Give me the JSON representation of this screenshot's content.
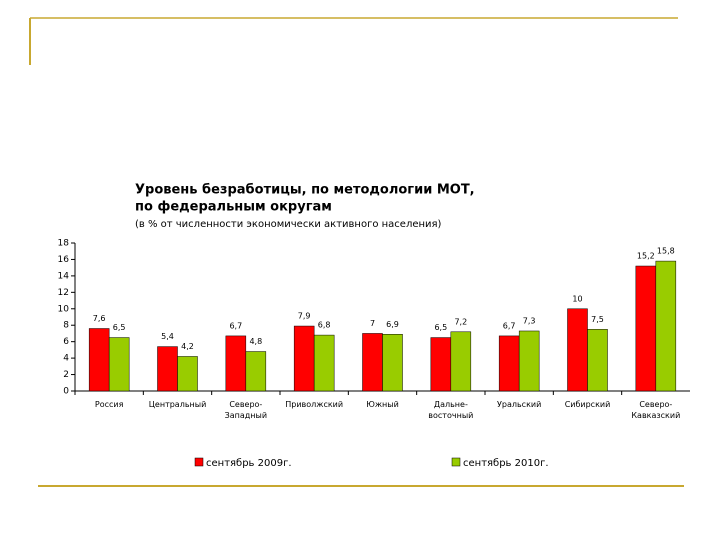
{
  "chart_data": {
    "type": "bar",
    "title": [
      "Уровень безработицы, по методологии МОТ,",
      "по федеральным округам"
    ],
    "subtitle": "(в % от численности экономически активного населения)",
    "categories": [
      "Россия",
      "Центральный",
      "Северо-Западный",
      "Приволжский",
      "Южный",
      "Дальне-восточный",
      "Уральский",
      "Сибирский",
      "Северо-Кавказский"
    ],
    "series": [
      {
        "name": "сентябрь 2009г.",
        "color": "#ff0000",
        "values": [
          7.6,
          5.4,
          6.7,
          7.9,
          7,
          6.5,
          6.7,
          10,
          15.2
        ],
        "value_labels": [
          "7,6",
          "5,4",
          "6,7",
          "7,9",
          "7",
          "6,5",
          "6,7",
          "10",
          "15,2"
        ]
      },
      {
        "name": "сентябрь 2010г.",
        "color": "#99cc00",
        "values": [
          6.5,
          4.2,
          4.8,
          6.8,
          6.9,
          7.2,
          7.3,
          7.5,
          15.8
        ],
        "value_labels": [
          "6,5",
          "4,2",
          "4,8",
          "6,8",
          "6,9",
          "7,2",
          "7,3",
          "7,5",
          "15,8"
        ]
      }
    ],
    "ylim": [
      0,
      18
    ],
    "yticks": [
      0,
      2,
      4,
      6,
      8,
      10,
      12,
      14,
      16,
      18
    ],
    "grid": false,
    "legend": "bottom"
  }
}
